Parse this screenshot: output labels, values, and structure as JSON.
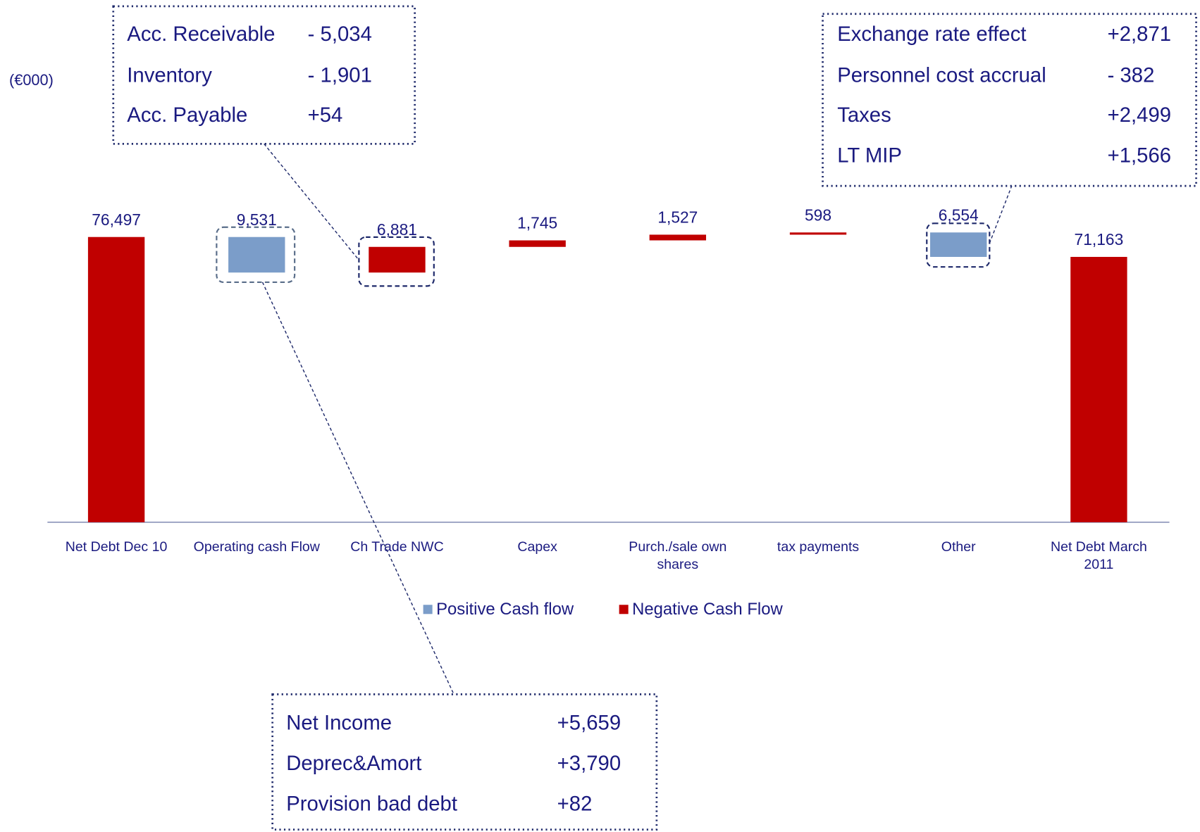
{
  "chart_data": {
    "type": "waterfall",
    "unit_label": "(€000)",
    "categories": [
      "Net Debt Dec 10",
      "Operating cash Flow",
      "Ch Trade NWC",
      "Capex",
      "Purch./sale own shares",
      "tax payments",
      "Other",
      "Net Debt March 2011"
    ],
    "series": [
      {
        "name": "Positive Cash flow",
        "color": "#7b9dc9",
        "values": [
          null,
          9531,
          null,
          null,
          null,
          null,
          6554,
          null
        ],
        "value_labels": [
          null,
          "9,531",
          null,
          null,
          null,
          null,
          "6,554",
          null
        ]
      },
      {
        "name": "Negative Cash Flow",
        "color": "#c00000",
        "values": [
          76497,
          null,
          6881,
          1745,
          1527,
          598,
          null,
          71163
        ],
        "value_labels": [
          "76,497",
          null,
          "6,881",
          "1,745",
          "1,527",
          "598",
          null,
          "71,163"
        ]
      }
    ],
    "ylim": [
      0,
      90000
    ],
    "callouts": [
      {
        "rows": [
          [
            "Acc. Receivable",
            "- 5,034"
          ],
          [
            "Inventory",
            "- 1,901"
          ],
          [
            "Acc. Payable",
            "+54"
          ]
        ]
      },
      {
        "rows": [
          [
            "Exchange rate effect",
            "+2,871"
          ],
          [
            "Personnel cost accrual",
            "- 382"
          ],
          [
            "Taxes",
            "+2,499"
          ],
          [
            "LT MIP",
            "+1,566"
          ]
        ]
      },
      {
        "rows": [
          [
            "Net Income",
            "+5,659"
          ],
          [
            "Deprec&Amort",
            "+3,790"
          ],
          [
            "Provision bad debt",
            "+82"
          ]
        ]
      }
    ]
  }
}
